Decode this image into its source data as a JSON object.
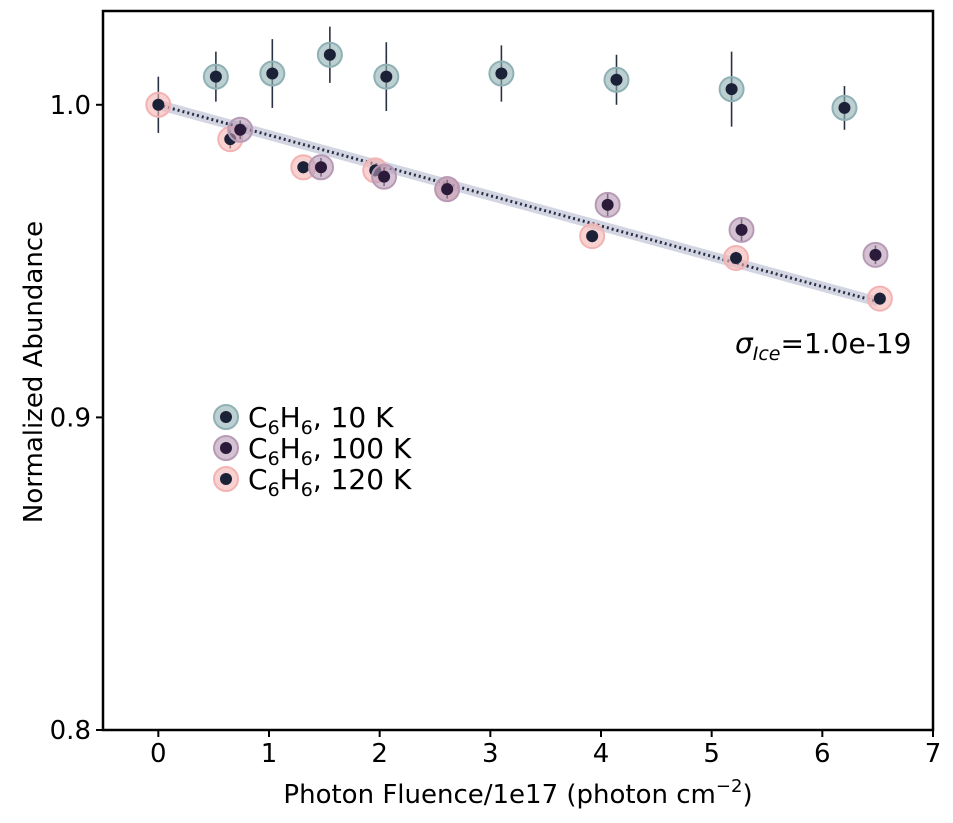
{
  "chart_data": {
    "type": "scatter",
    "xlabel": "Photon Fluence/1e17 (photon cm",
    "xlabel_sup": "−2",
    "xlabel_end": ")",
    "ylabel": "Normalized Abundance",
    "xlim": [
      -0.5,
      7
    ],
    "ylim": [
      0.8,
      1.03
    ],
    "xticks": [
      0,
      1,
      2,
      3,
      4,
      5,
      6,
      7
    ],
    "xtick_labels": [
      "0",
      "1",
      "2",
      "3",
      "4",
      "5",
      "6",
      "7"
    ],
    "yticks": [
      0.8,
      0.9,
      1.0
    ],
    "ytick_labels": [
      "0.8",
      "0.9",
      "1.0"
    ],
    "grid": false,
    "legend_position": "center-left",
    "annotation": {
      "sigma": "σ",
      "subscript": "Ice",
      "value": "=1.0e-19"
    },
    "fit_line": {
      "x": [
        0,
        6.5
      ],
      "y": [
        1.0,
        0.937
      ],
      "style": "dotted",
      "color": "#2a2f45",
      "band_color": "#c9ccdb"
    },
    "series": [
      {
        "name_main": "C",
        "name_sub1": "6",
        "name_mid": "H",
        "name_sub2": "6",
        "name_end": ", 10 K",
        "halo_color": "#8fb0b4",
        "dot_color": "#1b2238",
        "x": [
          0.52,
          1.03,
          1.55,
          2.06,
          3.1,
          4.14,
          5.18,
          6.2
        ],
        "y": [
          1.009,
          1.01,
          1.016,
          1.009,
          1.01,
          1.008,
          1.005,
          0.999
        ],
        "err": [
          0.008,
          0.011,
          0.009,
          0.011,
          0.009,
          0.008,
          0.012,
          0.007
        ]
      },
      {
        "name_main": "C",
        "name_sub1": "6",
        "name_mid": "H",
        "name_sub2": "6",
        "name_end": ", 100 K",
        "halo_color": "#b79ab5",
        "dot_color": "#2b1a3a",
        "x": [
          0.74,
          1.47,
          2.04,
          2.61,
          4.06,
          5.27,
          6.48
        ],
        "y": [
          0.992,
          0.98,
          0.977,
          0.973,
          0.968,
          0.96,
          0.952
        ],
        "err": [
          0.003,
          0.003,
          0.003,
          0.003,
          0.004,
          0.004,
          0.003
        ]
      },
      {
        "name_main": "C",
        "name_sub1": "6",
        "name_mid": "H",
        "name_sub2": "6",
        "name_end": ", 120 K",
        "halo_color": "#f4b3b3",
        "dot_color": "#1b2238",
        "x": [
          0,
          0.65,
          1.31,
          1.96,
          2.61,
          3.92,
          5.22,
          6.52
        ],
        "y": [
          1.0,
          0.989,
          0.98,
          0.979,
          0.973,
          0.958,
          0.951,
          0.938
        ],
        "err": [
          0.009,
          0.003,
          0.002,
          0.002,
          0.002,
          0.002,
          0.002,
          0.002
        ]
      }
    ]
  }
}
